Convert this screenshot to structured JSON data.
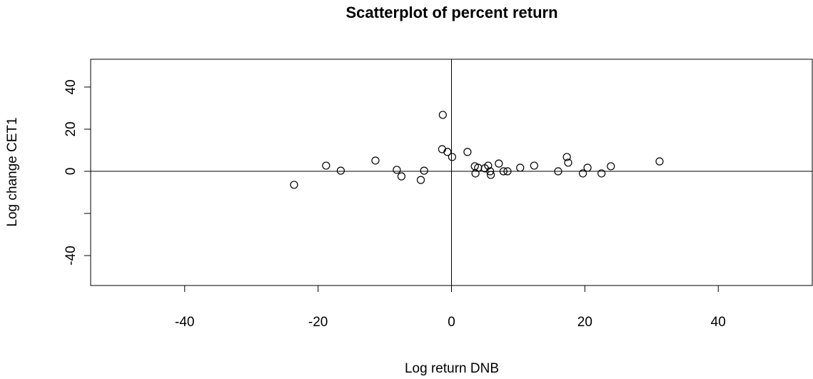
{
  "chart_data": {
    "type": "scatter",
    "title": "Scatterplot of percent return",
    "x_label": "Log return DNB",
    "y_label": "Log change CET1",
    "xlim": [
      -54.1,
      54.1
    ],
    "ylim": [
      -54.2,
      53.2
    ],
    "xticks": [
      -40,
      -20,
      0,
      20,
      40
    ],
    "yticks": [
      40,
      20,
      0,
      {
        "value": -20,
        "label": null
      },
      -40
    ],
    "hlines": [
      0
    ],
    "vlines": [
      0
    ],
    "color": "#000000",
    "x": [
      -23.6,
      -18.8,
      -16.6,
      -11.4,
      -8.2,
      -7.5,
      -4.6,
      -4.1,
      -1.3,
      -1.4,
      -0.6,
      0.1,
      2.4,
      3.5,
      3.6,
      4.0,
      5.0,
      5.5,
      5.8,
      5.9,
      7.1,
      7.8,
      8.4,
      10.3,
      12.4,
      16.0,
      17.3,
      17.5,
      19.7,
      20.4,
      22.5,
      23.9,
      31.2
    ],
    "values": [
      -6.4,
      2.7,
      0.3,
      5.1,
      0.7,
      -2.4,
      -4.1,
      0.3,
      26.8,
      10.5,
      9.2,
      6.8,
      9.2,
      2.4,
      -1.0,
      1.7,
      1.4,
      2.7,
      0,
      -1.7,
      3.7,
      0,
      0,
      1.7,
      2.7,
      0,
      6.8,
      4.1,
      -1.0,
      1.7,
      -1.0,
      2.4,
      4.7
    ]
  }
}
